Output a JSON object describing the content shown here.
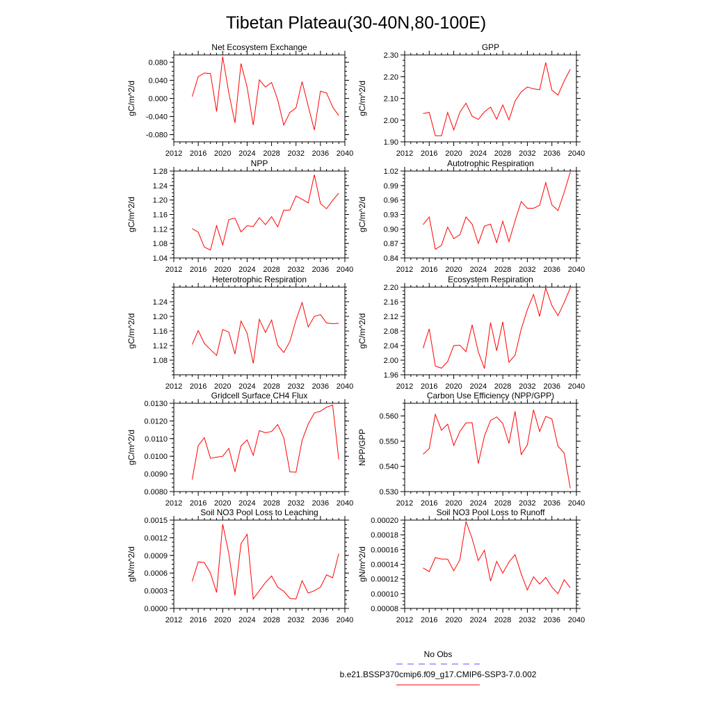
{
  "figure": {
    "title": "Tibetan Plateau(30-40N,80-100E)",
    "legend": [
      {
        "label": "No Obs",
        "color": "#0000ff",
        "dash": true
      },
      {
        "label": "b.e21.BSSP370cmip6.f09_g17.CMIP6-SSP3-7.0.002",
        "color": "#ff0000",
        "dash": false
      }
    ]
  },
  "chart_data": [
    {
      "type": "line",
      "title": "Net Ecosystem Exchange",
      "ylabel": "gC/m^2/d",
      "xlim": [
        2012,
        2040
      ],
      "ylim": [
        -0.096,
        0.096
      ],
      "xticks": [
        "2012",
        "2016",
        "2020",
        "2024",
        "2028",
        "2032",
        "2036",
        "2040"
      ],
      "yticks": [
        "-0.080",
        "-0.040",
        "0.000",
        "0.040",
        "0.080"
      ],
      "x": [
        2015,
        2016,
        2017,
        2018,
        2019,
        2020,
        2021,
        2022,
        2023,
        2024,
        2025,
        2026,
        2027,
        2028,
        2029,
        2030,
        2031,
        2032,
        2033,
        2034,
        2035,
        2036,
        2037,
        2038,
        2039
      ],
      "series": [
        {
          "color": "#ff0000",
          "values": [
            0.004,
            0.048,
            0.056,
            0.055,
            -0.029,
            0.092,
            0.012,
            -0.054,
            0.077,
            0.025,
            -0.059,
            0.041,
            0.025,
            0.035,
            -0.003,
            -0.059,
            -0.031,
            -0.021,
            0.037,
            -0.017,
            -0.07,
            0.016,
            0.012,
            -0.019,
            -0.038
          ]
        }
      ]
    },
    {
      "type": "line",
      "title": "GPP",
      "ylabel": "gC/m^2/d",
      "xlim": [
        2012,
        2040
      ],
      "ylim": [
        1.9,
        2.3
      ],
      "xticks": [
        "2012",
        "2016",
        "2020",
        "2024",
        "2028",
        "2032",
        "2036",
        "2040"
      ],
      "yticks": [
        "1.90",
        "2.00",
        "2.10",
        "2.20",
        "2.30"
      ],
      "x": [
        2015,
        2016,
        2017,
        2018,
        2019,
        2020,
        2021,
        2022,
        2023,
        2024,
        2025,
        2026,
        2027,
        2028,
        2029,
        2030,
        2031,
        2032,
        2033,
        2034,
        2035,
        2036,
        2037,
        2038,
        2039
      ],
      "series": [
        {
          "color": "#ff0000",
          "values": [
            2.03,
            2.036,
            1.928,
            1.928,
            2.035,
            1.955,
            2.036,
            2.078,
            2.018,
            2.003,
            2.038,
            2.06,
            2.004,
            2.07,
            2.001,
            2.088,
            2.13,
            2.152,
            2.144,
            2.14,
            2.265,
            2.138,
            2.115,
            2.18,
            2.234
          ]
        }
      ]
    },
    {
      "type": "line",
      "title": "NPP",
      "ylabel": "gC/m^2/d",
      "xlim": [
        2012,
        2040
      ],
      "ylim": [
        1.04,
        1.28
      ],
      "xticks": [
        "2012",
        "2016",
        "2020",
        "2024",
        "2028",
        "2032",
        "2036",
        "2040"
      ],
      "yticks": [
        "1.04",
        "1.08",
        "1.12",
        "1.16",
        "1.20",
        "1.24",
        "1.28"
      ],
      "x": [
        2015,
        2016,
        2017,
        2018,
        2019,
        2020,
        2021,
        2022,
        2023,
        2024,
        2025,
        2026,
        2027,
        2028,
        2029,
        2030,
        2031,
        2032,
        2033,
        2034,
        2035,
        2036,
        2037,
        2038,
        2039
      ],
      "series": [
        {
          "color": "#ff0000",
          "values": [
            1.121,
            1.111,
            1.07,
            1.062,
            1.129,
            1.076,
            1.146,
            1.15,
            1.112,
            1.129,
            1.127,
            1.151,
            1.132,
            1.154,
            1.126,
            1.172,
            1.172,
            1.211,
            1.202,
            1.192,
            1.27,
            1.19,
            1.176,
            1.199,
            1.219
          ]
        }
      ]
    },
    {
      "type": "line",
      "title": "Autotrophic Respiration",
      "ylabel": "gC/m^2/d",
      "xlim": [
        2012,
        2040
      ],
      "ylim": [
        0.84,
        1.02
      ],
      "xticks": [
        "2012",
        "2016",
        "2020",
        "2024",
        "2028",
        "2032",
        "2036",
        "2040"
      ],
      "yticks": [
        "0.84",
        "0.87",
        "0.90",
        "0.93",
        "0.96",
        "0.99",
        "1.02"
      ],
      "x": [
        2015,
        2016,
        2017,
        2018,
        2019,
        2020,
        2021,
        2022,
        2023,
        2024,
        2025,
        2026,
        2027,
        2028,
        2029,
        2030,
        2031,
        2032,
        2033,
        2034,
        2035,
        2036,
        2037,
        2038,
        2039
      ],
      "series": [
        {
          "color": "#ff0000",
          "values": [
            0.909,
            0.925,
            0.858,
            0.866,
            0.904,
            0.88,
            0.888,
            0.925,
            0.91,
            0.87,
            0.906,
            0.91,
            0.872,
            0.916,
            0.874,
            0.917,
            0.957,
            0.943,
            0.943,
            0.949,
            0.996,
            0.95,
            0.938,
            0.976,
            1.018
          ]
        }
      ]
    },
    {
      "type": "line",
      "title": "Heterotrophic Respiration",
      "ylabel": "gC/m^2/d",
      "xlim": [
        2012,
        2040
      ],
      "ylim": [
        1.04,
        1.28
      ],
      "xticks": [
        "2012",
        "2016",
        "2020",
        "2024",
        "2028",
        "2032",
        "2036",
        "2040"
      ],
      "yticks": [
        "1.08",
        "1.12",
        "1.16",
        "1.20",
        "1.24"
      ],
      "x": [
        2015,
        2016,
        2017,
        2018,
        2019,
        2020,
        2021,
        2022,
        2023,
        2024,
        2025,
        2026,
        2027,
        2028,
        2029,
        2030,
        2031,
        2032,
        2033,
        2034,
        2035,
        2036,
        2037,
        2038,
        2039
      ],
      "series": [
        {
          "color": "#ff0000",
          "values": [
            1.123,
            1.161,
            1.126,
            1.109,
            1.093,
            1.164,
            1.157,
            1.097,
            1.187,
            1.154,
            1.071,
            1.192,
            1.156,
            1.19,
            1.121,
            1.101,
            1.131,
            1.19,
            1.238,
            1.171,
            1.2,
            1.205,
            1.182,
            1.18,
            1.181
          ]
        }
      ]
    },
    {
      "type": "line",
      "title": "Ecosystem Respiration",
      "ylabel": "gC/m^2/d",
      "xlim": [
        2012,
        2040
      ],
      "ylim": [
        1.96,
        2.2
      ],
      "xticks": [
        "2012",
        "2016",
        "2020",
        "2024",
        "2028",
        "2032",
        "2036",
        "2040"
      ],
      "yticks": [
        "1.96",
        "2.00",
        "2.04",
        "2.08",
        "2.12",
        "2.16",
        "2.20"
      ],
      "x": [
        2015,
        2016,
        2017,
        2018,
        2019,
        2020,
        2021,
        2022,
        2023,
        2024,
        2025,
        2026,
        2027,
        2028,
        2029,
        2030,
        2031,
        2032,
        2033,
        2034,
        2035,
        2036,
        2037,
        2038,
        2039
      ],
      "series": [
        {
          "color": "#ff0000",
          "values": [
            2.033,
            2.086,
            1.984,
            1.978,
            1.996,
            2.04,
            2.041,
            2.023,
            2.097,
            2.023,
            1.977,
            2.103,
            2.026,
            2.105,
            1.994,
            2.014,
            2.085,
            2.138,
            2.18,
            2.12,
            2.198,
            2.15,
            2.122,
            2.158,
            2.198
          ]
        }
      ]
    },
    {
      "type": "line",
      "title": "Gridcell Surface CH4 Flux",
      "ylabel": "gC/m^2/d",
      "xlim": [
        2012,
        2040
      ],
      "ylim": [
        0.008,
        0.013
      ],
      "xticks": [
        "2012",
        "2016",
        "2020",
        "2024",
        "2028",
        "2032",
        "2036",
        "2040"
      ],
      "yticks": [
        "0.0080",
        "0.0090",
        "0.0100",
        "0.0110",
        "0.0120",
        "0.0130"
      ],
      "x": [
        2015,
        2016,
        2017,
        2018,
        2019,
        2020,
        2021,
        2022,
        2023,
        2024,
        2025,
        2026,
        2027,
        2028,
        2029,
        2030,
        2031,
        2032,
        2033,
        2034,
        2035,
        2036,
        2037,
        2038,
        2039
      ],
      "series": [
        {
          "color": "#ff0000",
          "values": [
            0.00868,
            0.0106,
            0.01105,
            0.00988,
            0.00995,
            0.01,
            0.01045,
            0.00912,
            0.01058,
            0.01093,
            0.01005,
            0.01145,
            0.01133,
            0.0114,
            0.0118,
            0.01105,
            0.00912,
            0.0091,
            0.0109,
            0.01183,
            0.01245,
            0.01255,
            0.01278,
            0.0129,
            0.00983
          ]
        }
      ]
    },
    {
      "type": "line",
      "title": "Carbon Use Efficiency (NPP/GPP)",
      "ylabel": "NPP/GPP",
      "xlim": [
        2012,
        2040
      ],
      "ylim": [
        0.53,
        0.565
      ],
      "xticks": [
        "2012",
        "2016",
        "2020",
        "2024",
        "2028",
        "2032",
        "2036",
        "2040"
      ],
      "yticks": [
        "0.530",
        "0.540",
        "0.550",
        "0.560"
      ],
      "x": [
        2015,
        2016,
        2017,
        2018,
        2019,
        2020,
        2021,
        2022,
        2023,
        2024,
        2025,
        2026,
        2027,
        2028,
        2029,
        2030,
        2031,
        2032,
        2033,
        2034,
        2035,
        2036,
        2037,
        2038,
        2039
      ],
      "series": [
        {
          "color": "#ff0000",
          "values": [
            0.5448,
            0.547,
            0.5606,
            0.5543,
            0.5567,
            0.5483,
            0.5538,
            0.5572,
            0.5573,
            0.5411,
            0.552,
            0.5582,
            0.5596,
            0.557,
            0.5491,
            0.5618,
            0.5447,
            0.5485,
            0.5624,
            0.5538,
            0.5598,
            0.5588,
            0.548,
            0.5453,
            0.5313
          ]
        }
      ]
    },
    {
      "type": "line",
      "title": "Soil NO3 Pool Loss to Leaching",
      "ylabel": "gN/m^2/d",
      "xlim": [
        2012,
        2040
      ],
      "ylim": [
        0.0,
        0.0015
      ],
      "xticks": [
        "2012",
        "2016",
        "2020",
        "2024",
        "2028",
        "2032",
        "2036",
        "2040"
      ],
      "yticks": [
        "0.0000",
        "0.0003",
        "0.0006",
        "0.0009",
        "0.0012",
        "0.0015"
      ],
      "x": [
        2015,
        2016,
        2017,
        2018,
        2019,
        2020,
        2021,
        2022,
        2023,
        2024,
        2025,
        2026,
        2027,
        2028,
        2029,
        2030,
        2031,
        2032,
        2033,
        2034,
        2035,
        2036,
        2037,
        2038,
        2039
      ],
      "series": [
        {
          "color": "#ff0000",
          "values": [
            0.00046,
            0.00079,
            0.00078,
            0.0006,
            0.00027,
            0.00143,
            0.00093,
            0.00022,
            0.0011,
            0.00126,
            0.00016,
            0.0003,
            0.00044,
            0.00055,
            0.00036,
            0.00029,
            0.00017,
            0.00016,
            0.00047,
            0.00026,
            0.0003,
            0.00036,
            0.00057,
            0.00052,
            0.00093
          ]
        }
      ]
    },
    {
      "type": "line",
      "title": "Soil NO3 Pool Loss to Runoff",
      "ylabel": "gN/m^2/d",
      "xlim": [
        2012,
        2040
      ],
      "ylim": [
        8e-05,
        0.0002
      ],
      "xticks": [
        "2012",
        "2016",
        "2020",
        "2024",
        "2028",
        "2032",
        "2036",
        "2040"
      ],
      "yticks": [
        "0.00008",
        "0.00010",
        "0.00012",
        "0.00014",
        "0.00016",
        "0.00018",
        "0.00020"
      ],
      "x": [
        2015,
        2016,
        2017,
        2018,
        2019,
        2020,
        2021,
        2022,
        2023,
        2024,
        2025,
        2026,
        2027,
        2028,
        2029,
        2030,
        2031,
        2032,
        2033,
        2034,
        2035,
        2036,
        2037,
        2038,
        2039
      ],
      "series": [
        {
          "color": "#ff0000",
          "values": [
            0.000135,
            0.00013,
            0.000149,
            0.000147,
            0.000147,
            0.000131,
            0.000146,
            0.000198,
            0.000175,
            0.000145,
            0.000159,
            0.000117,
            0.000144,
            0.000128,
            0.000143,
            0.000153,
            0.000127,
            0.000105,
            0.000123,
            0.000113,
            0.000122,
            0.000109,
            0.0001,
            0.000119,
            0.000108
          ]
        }
      ]
    }
  ]
}
